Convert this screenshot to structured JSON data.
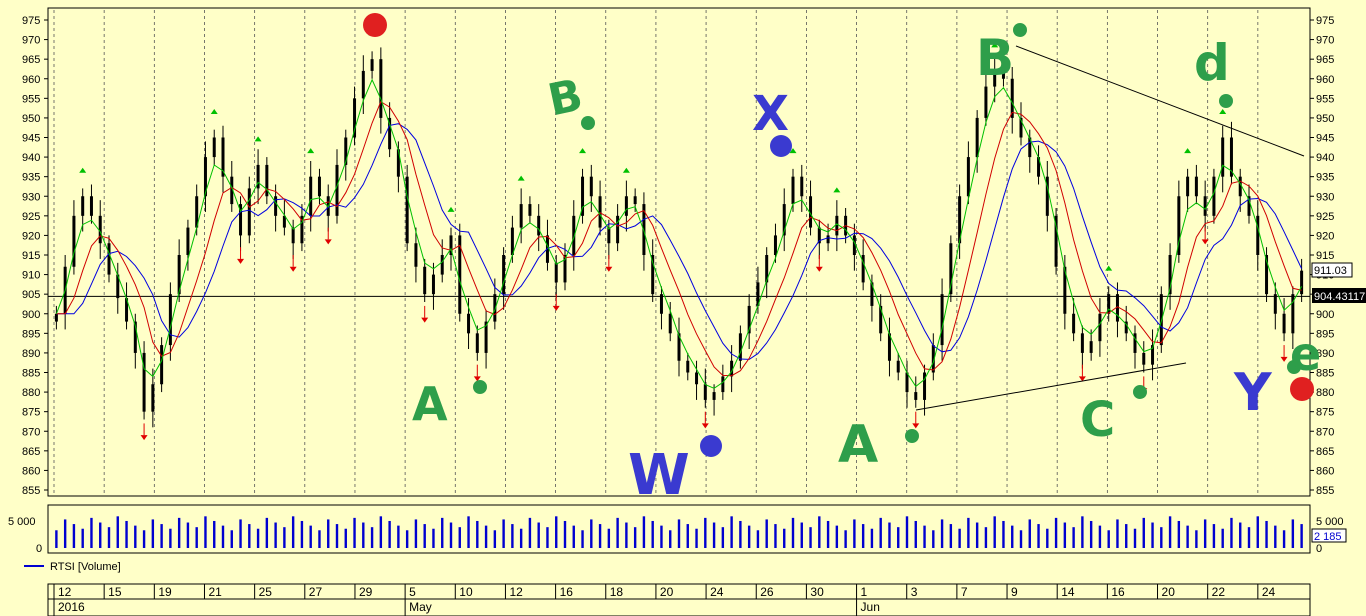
{
  "colors": {
    "background": "#ffffc8",
    "candle": "#000000",
    "ma_fast": "#00c000",
    "ma_mid": "#d00000",
    "ma_slow": "#0000e0",
    "volume": "#0000d0",
    "up_marker": "#00c000",
    "down_marker": "#e00000",
    "annotation_green": "#2e9e4a",
    "annotation_blue": "#3a3ad0",
    "annotation_red": "#e02020"
  },
  "price_panel": {
    "last_price_label": "911.03",
    "reference_line_label": "904.43117"
  },
  "volume_panel": {
    "legend_label": "RTSI [Volume]",
    "last_volume_label": "2 185"
  },
  "annotations": [
    {
      "text": "B",
      "color": "green"
    },
    {
      "text": "A",
      "color": "green"
    },
    {
      "text": "X",
      "color": "blue"
    },
    {
      "text": "W",
      "color": "blue"
    },
    {
      "text": "A",
      "color": "green"
    },
    {
      "text": "B",
      "color": "green"
    },
    {
      "text": "C",
      "color": "green"
    },
    {
      "text": "d",
      "color": "green"
    },
    {
      "text": "Y",
      "color": "blue"
    },
    {
      "text": "e",
      "color": "green"
    }
  ],
  "chart_data": {
    "type": "candlestick",
    "y_range": [
      855,
      975
    ],
    "y_ticks": [
      855,
      860,
      865,
      870,
      875,
      880,
      885,
      890,
      895,
      900,
      905,
      910,
      915,
      920,
      925,
      930,
      935,
      940,
      945,
      950,
      955,
      960,
      965,
      970,
      975
    ],
    "reference_line": 904.43117,
    "x_ticks": [
      {
        "label": "12"
      },
      {
        "label": "15"
      },
      {
        "label": "19"
      },
      {
        "label": "21"
      },
      {
        "label": "25"
      },
      {
        "label": "27"
      },
      {
        "label": "29"
      },
      {
        "label": "5"
      },
      {
        "label": "10"
      },
      {
        "label": "12"
      },
      {
        "label": "16"
      },
      {
        "label": "18"
      },
      {
        "label": "20"
      },
      {
        "label": "24"
      },
      {
        "label": "26"
      },
      {
        "label": "30"
      },
      {
        "label": "1"
      },
      {
        "label": "3"
      },
      {
        "label": "7"
      },
      {
        "label": "9"
      },
      {
        "label": "14"
      },
      {
        "label": "16"
      },
      {
        "label": "20"
      },
      {
        "label": "22"
      },
      {
        "label": "24"
      }
    ],
    "periods": [
      {
        "label": "2016"
      },
      {
        "label": "May"
      },
      {
        "label": "Jun"
      }
    ],
    "close_series": [
      900,
      912,
      925,
      930,
      925,
      918,
      910,
      904,
      898,
      890,
      875,
      882,
      892,
      905,
      915,
      922,
      930,
      940,
      945,
      935,
      928,
      920,
      932,
      938,
      930,
      925,
      922,
      918,
      925,
      935,
      930,
      925,
      938,
      945,
      955,
      962,
      965,
      950,
      942,
      935,
      918,
      912,
      905,
      910,
      915,
      920,
      900,
      895,
      890,
      898,
      905,
      915,
      922,
      928,
      925,
      920,
      913,
      908,
      915,
      925,
      935,
      930,
      922,
      918,
      925,
      930,
      928,
      915,
      905,
      900,
      895,
      888,
      885,
      882,
      878,
      880,
      884,
      888,
      895,
      902,
      908,
      915,
      920,
      928,
      935,
      930,
      922,
      918,
      920,
      925,
      920,
      915,
      908,
      902,
      895,
      888,
      885,
      880,
      878,
      885,
      892,
      905,
      918,
      930,
      940,
      950,
      958,
      962,
      960,
      950,
      945,
      940,
      935,
      925,
      912,
      900,
      895,
      890,
      893,
      900,
      905,
      898,
      895,
      890,
      887,
      892,
      905,
      915,
      930,
      935,
      930,
      925,
      935,
      945,
      935,
      930,
      925,
      915,
      905,
      900,
      895,
      905,
      911
    ]
  }
}
